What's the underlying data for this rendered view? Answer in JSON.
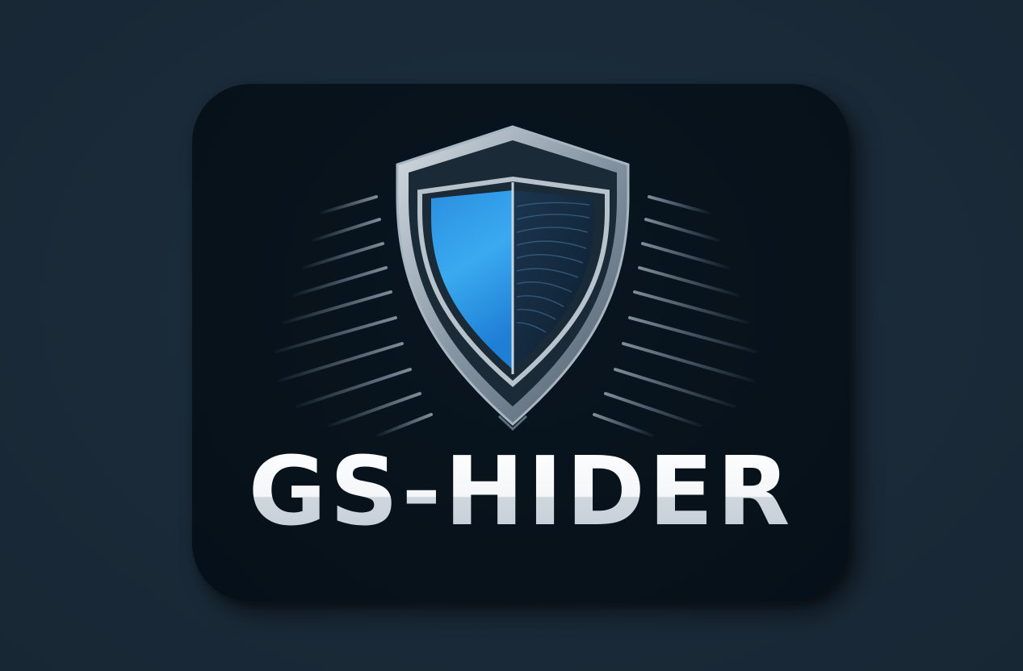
{
  "logo": {
    "wordmark": "GS-HIDER",
    "colors": {
      "page_background": "#1a2a38",
      "card_background": "#07121b",
      "shield_blue": "#2f9ee8",
      "shield_frame": "#6f8292",
      "shield_dark_half": "#14283a",
      "text": "#f2f4f6"
    },
    "icons": [
      "shield-icon",
      "speed-lines"
    ]
  }
}
